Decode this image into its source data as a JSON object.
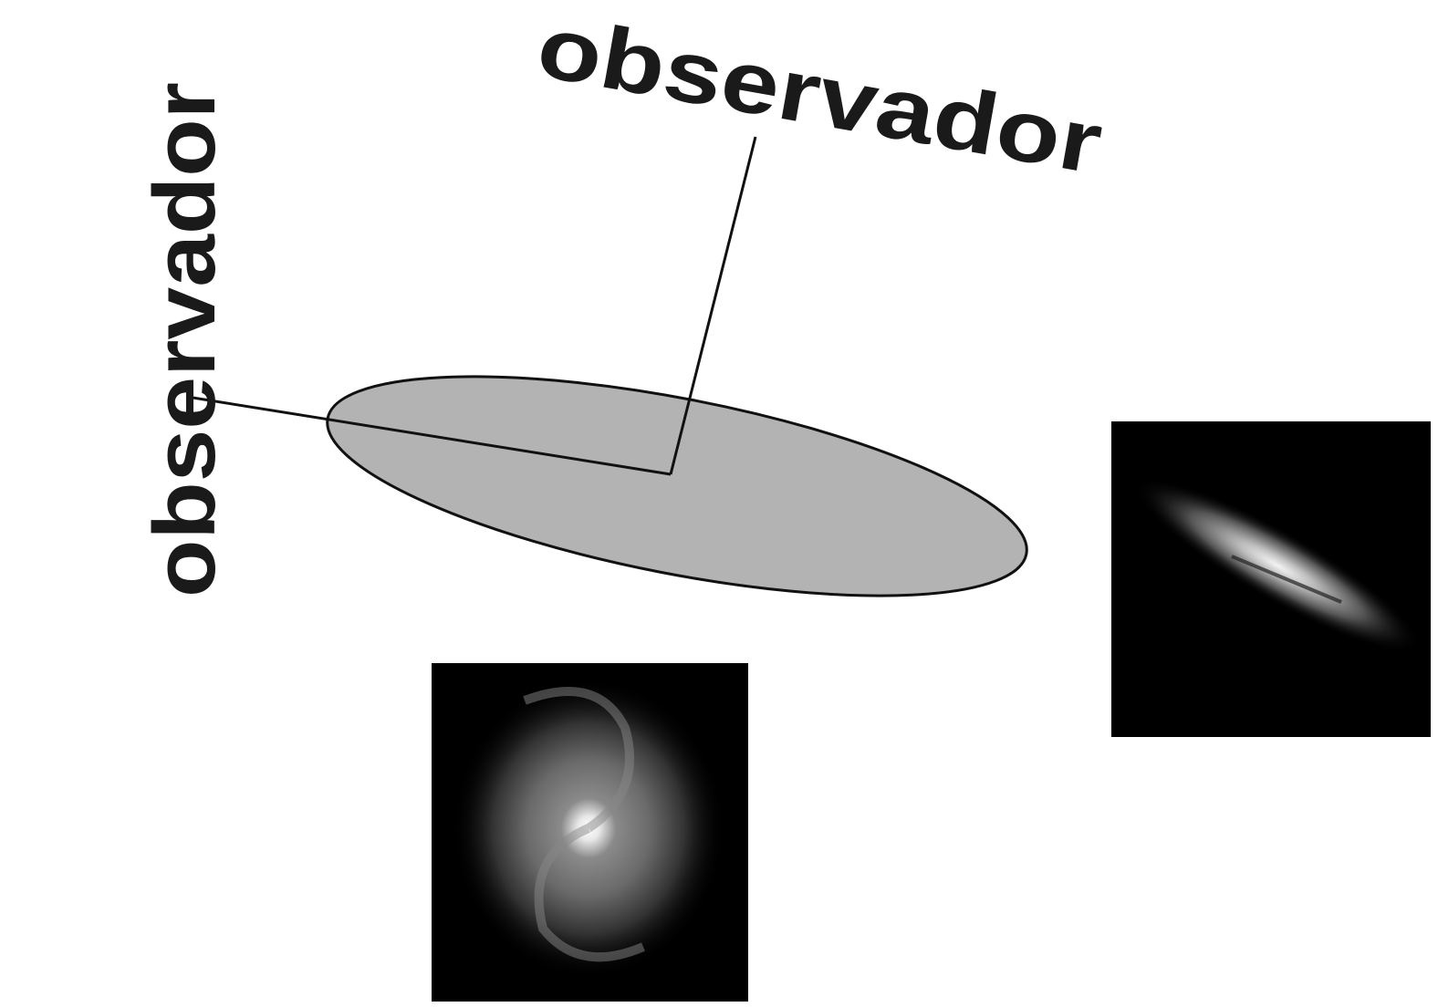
{
  "labels": {
    "side_observer": "observador",
    "top_observer": "observador"
  }
}
